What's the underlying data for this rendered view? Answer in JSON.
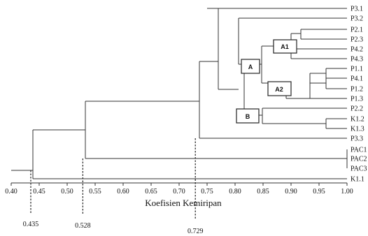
{
  "chart_data": {
    "type": "dendrogram",
    "xlabel": "Koefisien Kemiripan",
    "xlim": [
      0.4,
      1.0
    ],
    "ticks": [
      "0.40",
      "0.45",
      "0.50",
      "0.55",
      "0.60",
      "0.65",
      "0.70",
      "0.75",
      "0.80",
      "0.85",
      "0.90",
      "0.95",
      "1.00"
    ],
    "leaves": [
      "P3.1",
      "P3.2",
      "P2.1",
      "P2.3",
      "P4.2",
      "P4.3",
      "P1.1",
      "P4.1",
      "P1.2",
      "P1.3",
      "P2.2",
      "K1.2",
      "K1.3",
      "P3.3",
      "PAC1",
      "PAC2",
      "PAC3",
      "K1.1"
    ],
    "cluster_labels": [
      "A1",
      "A",
      "A2",
      "B"
    ],
    "cutoffs": [
      {
        "value": 0.435,
        "label": "0.435"
      },
      {
        "value": 0.528,
        "label": "0.528"
      },
      {
        "value": 0.729,
        "label": "0.729"
      }
    ]
  }
}
